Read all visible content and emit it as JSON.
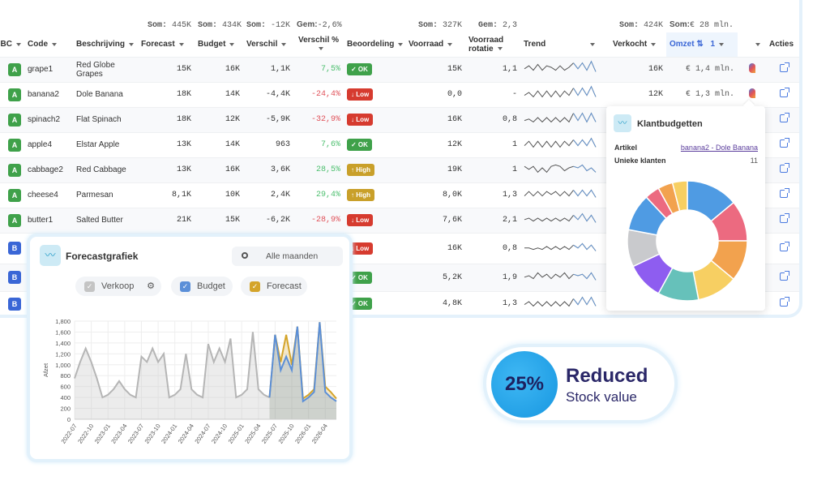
{
  "summary": {
    "forecast": {
      "label": "Som:",
      "value": "445K"
    },
    "budget": {
      "label": "Som:",
      "value": "434K"
    },
    "verschil": {
      "label": "Som:",
      "value": "-12K"
    },
    "verschil_pct": {
      "label": "Gem:",
      "value": "-2,6%"
    },
    "voorraad": {
      "label": "Som:",
      "value": "327K"
    },
    "rotatie": {
      "label": "Gem:",
      "value": "2,3"
    },
    "verkocht": {
      "label": "Som:",
      "value": "424K"
    },
    "omzet": {
      "label": "Som:",
      "value": "€ 28 mln."
    }
  },
  "columns": {
    "abc": "BC",
    "code": "Code",
    "beschrijving": "Beschrijving",
    "forecast": "Forecast",
    "budget": "Budget",
    "verschil": "Verschil",
    "verschil_pct": "Verschil %",
    "beoordeling": "Beoordeling",
    "voorraad": "Voorraad",
    "rotatie": "Voorraad rotatie",
    "trend": "Trend",
    "verkocht": "Verkocht",
    "omzet": "Omzet",
    "omzet_sort": "1",
    "acties": "Acties"
  },
  "rows": [
    {
      "abc": "A",
      "code": "grape1",
      "desc": "Red Globe Grapes",
      "forecast": "15K",
      "budget": "16K",
      "diff": "1,1K",
      "pct": "7,5%",
      "pct_sign": "pos",
      "rating": "✓ OK",
      "rating_type": "ok",
      "stock": "15K",
      "rotation": "1,1",
      "sold": "16K",
      "revenue": "€ 1,4 mln.",
      "trend": [
        4,
        6,
        3,
        7,
        3,
        6,
        5,
        3,
        6,
        3,
        5,
        8,
        4,
        8,
        3,
        9,
        2
      ]
    },
    {
      "abc": "A",
      "code": "banana2",
      "desc": "Dole Banana",
      "forecast": "18K",
      "budget": "14K",
      "diff": "-4,4K",
      "pct": "-24,4%",
      "pct_sign": "neg",
      "rating": "↓ Low",
      "rating_type": "low",
      "stock": "0,0",
      "rotation": "-",
      "sold": "12K",
      "revenue": "€ 1,3 mln.",
      "trend": [
        3,
        5,
        2,
        6,
        2,
        6,
        2,
        6,
        2,
        6,
        3,
        8,
        3,
        8,
        3,
        9,
        2
      ]
    },
    {
      "abc": "A",
      "code": "spinach2",
      "desc": "Flat Spinach",
      "forecast": "18K",
      "budget": "12K",
      "diff": "-5,9K",
      "pct": "-32,9%",
      "pct_sign": "neg",
      "rating": "↓ Low",
      "rating_type": "low",
      "stock": "16K",
      "rotation": "0,8",
      "sold": "",
      "revenue": "",
      "trend": [
        3,
        4,
        2,
        5,
        2,
        5,
        2,
        5,
        2,
        5,
        2,
        8,
        3,
        8,
        2,
        8,
        2
      ]
    },
    {
      "abc": "A",
      "code": "apple4",
      "desc": "Elstar Apple",
      "forecast": "13K",
      "budget": "14K",
      "diff": "963",
      "pct": "7,6%",
      "pct_sign": "pos",
      "rating": "✓ OK",
      "rating_type": "ok",
      "stock": "12K",
      "rotation": "1",
      "sold": "",
      "revenue": "",
      "trend": [
        3,
        6,
        2,
        6,
        2,
        6,
        2,
        6,
        2,
        6,
        3,
        7,
        3,
        7,
        3,
        8,
        2
      ]
    },
    {
      "abc": "A",
      "code": "cabbage2",
      "desc": "Red Cabbage",
      "forecast": "13K",
      "budget": "16K",
      "diff": "3,6K",
      "pct": "28,5%",
      "pct_sign": "pos",
      "rating": "↑ High",
      "rating_type": "high",
      "stock": "19K",
      "rotation": "1",
      "sold": "",
      "revenue": "",
      "trend": [
        6,
        4,
        6,
        2,
        5,
        2,
        6,
        7,
        6,
        3,
        5,
        6,
        5,
        7,
        3,
        5,
        2
      ]
    },
    {
      "abc": "A",
      "code": "cheese4",
      "desc": "Parmesan",
      "forecast": "8,1K",
      "budget": "10K",
      "diff": "2,4K",
      "pct": "29,4%",
      "pct_sign": "pos",
      "rating": "↑ High",
      "rating_type": "high",
      "stock": "8,0K",
      "rotation": "1,3",
      "sold": "",
      "revenue": "",
      "trend": [
        3,
        6,
        3,
        6,
        3,
        6,
        4,
        6,
        3,
        6,
        3,
        7,
        3,
        7,
        3,
        7,
        2
      ]
    },
    {
      "abc": "A",
      "code": "butter1",
      "desc": "Salted Butter",
      "forecast": "21K",
      "budget": "15K",
      "diff": "-6,2K",
      "pct": "-28,9%",
      "pct_sign": "neg",
      "rating": "↓ Low",
      "rating_type": "low",
      "stock": "7,6K",
      "rotation": "2,1",
      "sold": "",
      "revenue": "",
      "trend": [
        4,
        5,
        3,
        5,
        3,
        5,
        3,
        5,
        3,
        5,
        3,
        7,
        4,
        8,
        3,
        7,
        2
      ]
    },
    {
      "abc": "B",
      "code": "",
      "desc": "",
      "forecast": "",
      "budget": "",
      "diff": "",
      "pct": "",
      "pct_sign": "neg",
      "rating": "↓ Low",
      "rating_type": "low",
      "stock": "16K",
      "rotation": "0,8",
      "sold": "",
      "revenue": "",
      "trend": [
        4,
        4,
        3,
        4,
        3,
        5,
        3,
        5,
        3,
        5,
        3,
        6,
        4,
        7,
        3,
        6,
        2
      ]
    },
    {
      "abc": "B",
      "code": "",
      "desc": "",
      "forecast": "",
      "budget": "",
      "diff": "",
      "pct": "",
      "pct_sign": "pos",
      "rating": "✓ OK",
      "rating_type": "ok",
      "stock": "5,2K",
      "rotation": "1,9",
      "sold": "",
      "revenue": "",
      "trend": [
        4,
        5,
        3,
        7,
        4,
        6,
        3,
        6,
        4,
        7,
        3,
        6,
        5,
        6,
        3,
        7,
        2
      ]
    },
    {
      "abc": "B",
      "code": "",
      "desc": "",
      "forecast": "",
      "budget": "",
      "diff": "",
      "pct": "",
      "pct_sign": "pos",
      "rating": "✓ OK",
      "rating_type": "ok",
      "stock": "4,8K",
      "rotation": "1,3",
      "sold": "",
      "revenue": "",
      "trend": [
        3,
        5,
        2,
        5,
        2,
        5,
        2,
        5,
        2,
        5,
        2,
        7,
        3,
        8,
        3,
        8,
        2
      ]
    }
  ],
  "colors": {
    "ok": "#3fa14a",
    "low": "#d63b2f",
    "high": "#c9a02a",
    "abc_a": "#3fa14a",
    "abc_b": "#3a66d6",
    "verkoop": "#b5b5b5",
    "budget": "#5b8fd8",
    "forecast": "#d4a42a"
  },
  "forecast_card": {
    "title": "Forecastgrafiek",
    "icon": "line-chart-icon",
    "period_select": "Alle maanden",
    "legend": {
      "verkoop": "Verkoop",
      "budget": "Budget",
      "forecast": "Forecast"
    }
  },
  "chart_data": {
    "type": "area",
    "ylabel": "Afzet",
    "ylim": [
      0,
      1800
    ],
    "yticks": [
      "0",
      "200",
      "400",
      "600",
      "800",
      "1,000",
      "1,200",
      "1,400",
      "1,600",
      "1,800"
    ],
    "grid": true,
    "x": [
      "2022-07",
      "2022-08",
      "2022-09",
      "2022-10",
      "2022-11",
      "2022-12",
      "2023-01",
      "2023-02",
      "2023-03",
      "2023-04",
      "2023-05",
      "2023-06",
      "2023-07",
      "2023-08",
      "2023-09",
      "2023-10",
      "2023-11",
      "2023-12",
      "2024-01",
      "2024-02",
      "2024-03",
      "2024-04",
      "2024-05",
      "2024-06",
      "2024-07",
      "2024-08",
      "2024-09",
      "2024-10",
      "2024-11",
      "2024-12",
      "2025-01",
      "2025-02",
      "2025-03",
      "2025-04",
      "2025-05",
      "2025-06",
      "2025-07",
      "2025-08",
      "2025-09",
      "2025-10",
      "2025-11",
      "2025-12",
      "2026-01",
      "2026-02",
      "2026-03",
      "2026-04",
      "2026-05",
      "2026-06"
    ],
    "xticks": [
      "2022-07",
      "2022-10",
      "2023-01",
      "2023-04",
      "2023-07",
      "2023-10",
      "2024-01",
      "2024-04",
      "2024-07",
      "2024-10",
      "2025-01",
      "2025-04",
      "2025-07",
      "2025-10",
      "2026-01",
      "2026-04"
    ],
    "series": [
      {
        "name": "Verkoop",
        "values": [
          750,
          1050,
          1300,
          1050,
          750,
          400,
          450,
          550,
          700,
          550,
          450,
          400,
          1150,
          1050,
          1300,
          1050,
          1200,
          400,
          450,
          550,
          1200,
          550,
          450,
          400,
          1380,
          1050,
          1300,
          1050,
          1480,
          400,
          450,
          550,
          1600,
          550,
          450,
          400,
          null,
          null,
          null,
          null,
          null,
          null,
          null,
          null,
          null,
          null,
          null,
          null
        ]
      },
      {
        "name": "Forecast",
        "values": [
          null,
          null,
          null,
          null,
          null,
          null,
          null,
          null,
          null,
          null,
          null,
          null,
          null,
          null,
          null,
          null,
          null,
          null,
          null,
          null,
          null,
          null,
          null,
          null,
          null,
          null,
          null,
          null,
          null,
          null,
          null,
          null,
          null,
          null,
          null,
          400,
          1550,
          1050,
          1550,
          1000,
          1700,
          380,
          450,
          550,
          1780,
          600,
          500,
          380
        ]
      },
      {
        "name": "Budget",
        "values": [
          null,
          null,
          null,
          null,
          null,
          null,
          null,
          null,
          null,
          null,
          null,
          null,
          null,
          null,
          null,
          null,
          null,
          null,
          null,
          null,
          null,
          null,
          null,
          null,
          null,
          null,
          null,
          null,
          null,
          null,
          null,
          null,
          null,
          null,
          null,
          400,
          1550,
          900,
          1150,
          900,
          1700,
          330,
          400,
          500,
          1780,
          500,
          400,
          330
        ]
      }
    ]
  },
  "popover": {
    "title": "Klantbudgetten",
    "article_label": "Artikel",
    "article_value": "banana2 - Dole Banana",
    "customers_label": "Unieke klanten",
    "customers_value": "11",
    "donut": {
      "type": "pie",
      "values": [
        14,
        11,
        11,
        11,
        11,
        10,
        10,
        10,
        4,
        4,
        4
      ],
      "colors": [
        "#4f9be3",
        "#ec6a80",
        "#f2a24e",
        "#f7cf62",
        "#66c1ba",
        "#8e5df0",
        "#c9cacd",
        "#4f9be3",
        "#ec6a80",
        "#f2a24e",
        "#f7cf62"
      ]
    }
  },
  "stat": {
    "value": "25%",
    "headline": "Reduced",
    "subline": "Stock value"
  }
}
